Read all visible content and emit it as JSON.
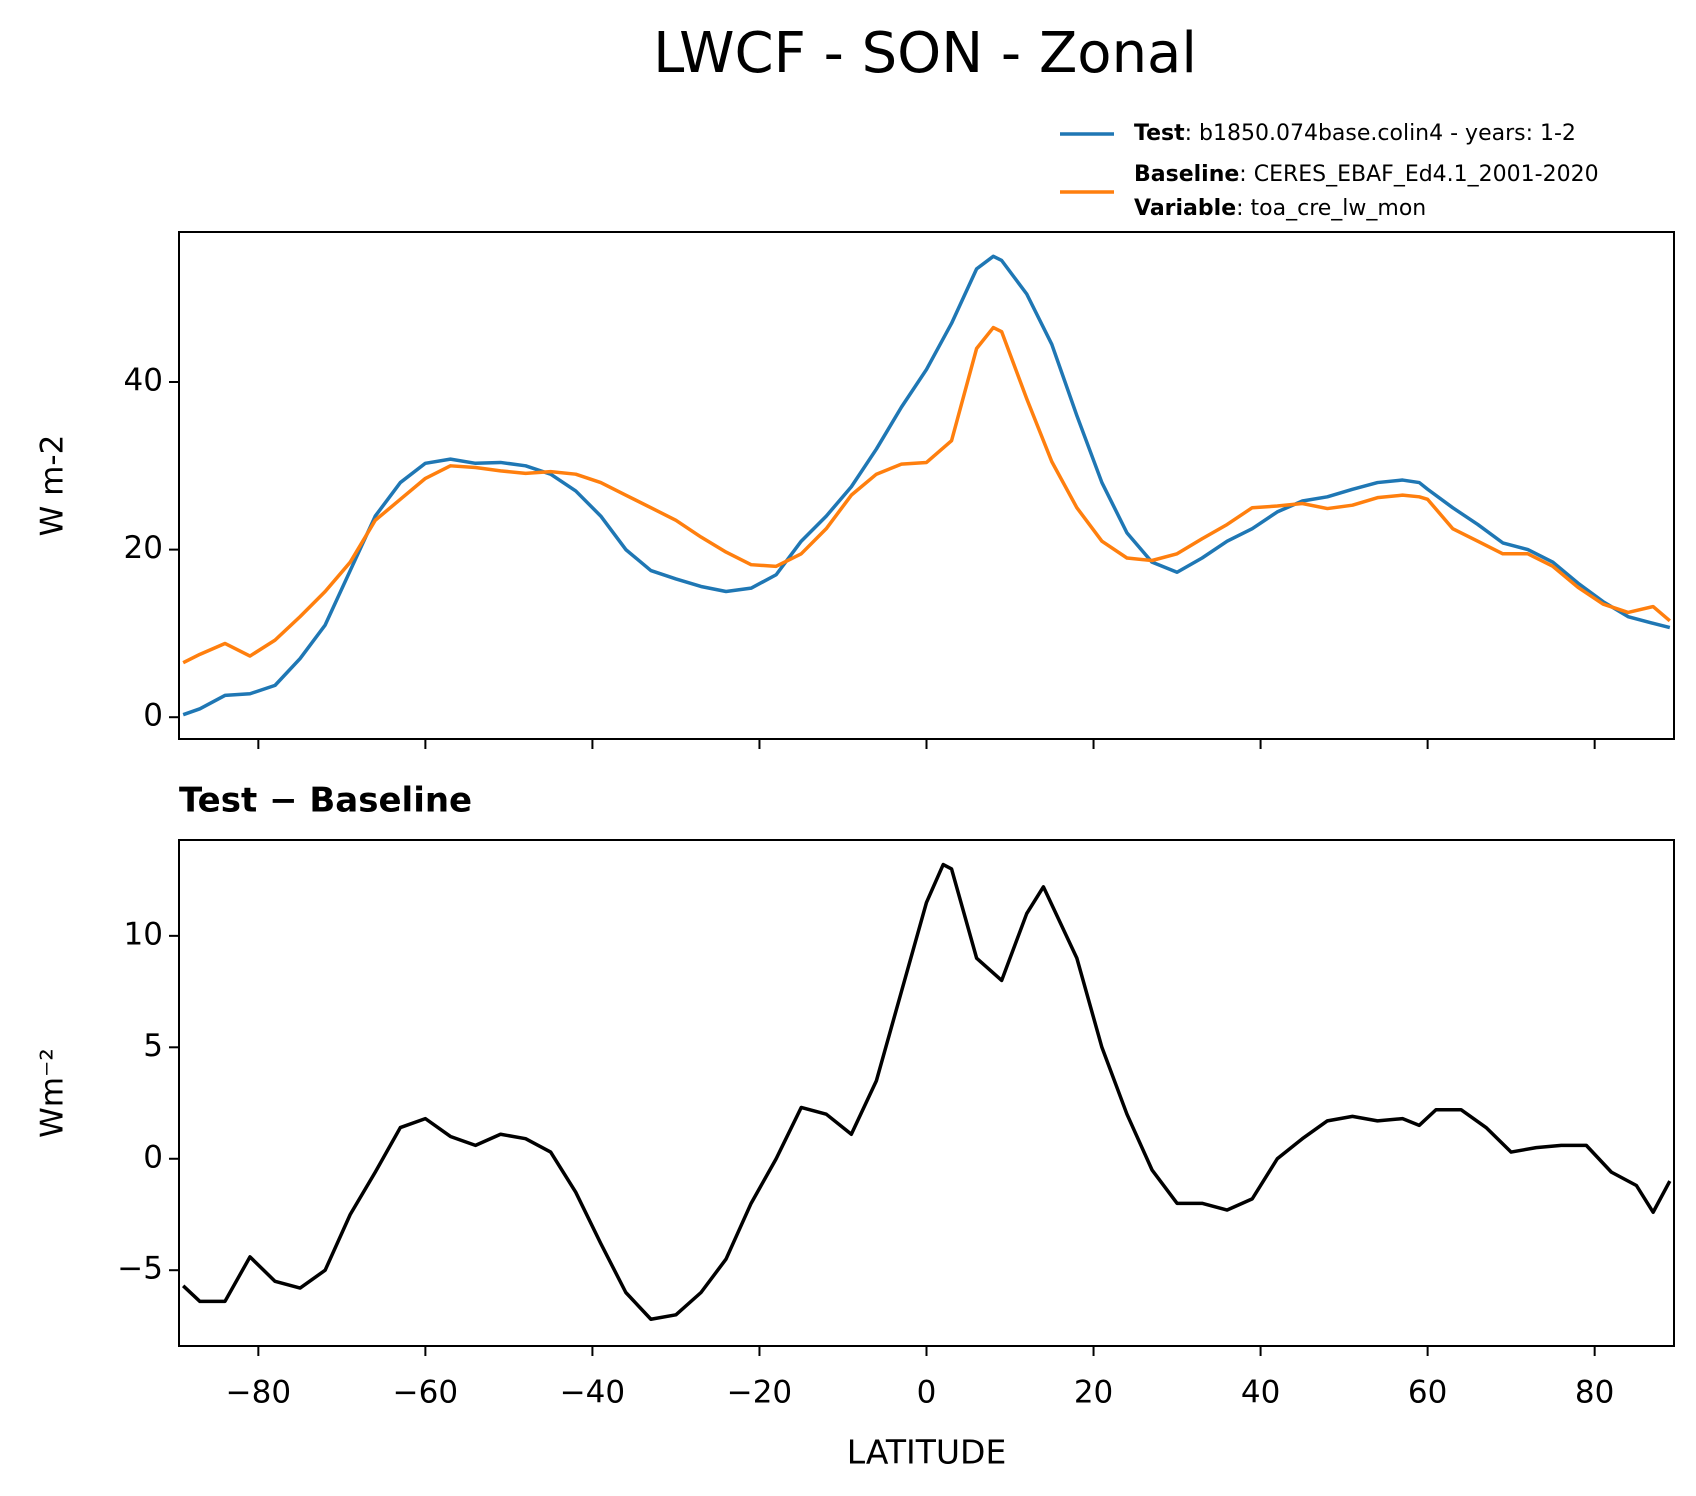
{
  "chart_data": [
    {
      "type": "line",
      "title": "LWCF - SON - Zonal",
      "ylabel": "W m-2",
      "x": [
        -89,
        -87,
        -84,
        -81,
        -78,
        -75,
        -72,
        -69,
        -66,
        -63,
        -60,
        -57,
        -54,
        -51,
        -48,
        -45,
        -42,
        -39,
        -36,
        -33,
        -30,
        -27,
        -24,
        -21,
        -18,
        -15,
        -12,
        -9,
        -6,
        -3,
        0,
        3,
        6,
        8,
        9,
        12,
        15,
        18,
        21,
        24,
        27,
        30,
        33,
        36,
        39,
        42,
        45,
        48,
        51,
        54,
        57,
        59,
        60,
        63,
        66,
        69,
        72,
        75,
        78,
        81,
        84,
        87,
        89
      ],
      "series": [
        {
          "name": "Test",
          "description": ": b1850.074base.colin4 - years: 1-2",
          "color": "#1f77b4",
          "values": [
            0.3,
            1.0,
            2.6,
            2.8,
            3.8,
            7.0,
            11.0,
            17.5,
            24,
            28,
            30.3,
            30.8,
            30.3,
            30.4,
            30.0,
            29.0,
            27.0,
            24.0,
            20.0,
            17.5,
            16.5,
            15.6,
            15.0,
            15.4,
            17.0,
            21.0,
            24.0,
            27.5,
            32.0,
            37.0,
            41.5,
            47.0,
            53.5,
            55.0,
            54.5,
            50.5,
            44.5,
            36.0,
            28.0,
            22.0,
            18.5,
            17.3,
            19.0,
            21.0,
            22.5,
            24.5,
            25.8,
            26.3,
            27.2,
            28.0,
            28.3,
            28.0,
            27.2,
            25.0,
            23.0,
            20.8,
            20.0,
            18.5,
            16.0,
            13.8,
            12.0,
            11.2,
            10.7
          ]
        },
        {
          "name": "Baseline",
          "description": ": CERES_EBAF_Ed4.1_2001-2020",
          "color": "#ff7f0e",
          "values": [
            6.5,
            7.5,
            8.8,
            7.3,
            9.2,
            12.0,
            15.0,
            18.5,
            23.5,
            26.0,
            28.5,
            30.0,
            29.8,
            29.4,
            29.1,
            29.3,
            29.0,
            28.0,
            26.5,
            25.0,
            23.5,
            21.5,
            19.7,
            18.2,
            18.0,
            19.5,
            22.5,
            26.5,
            29.0,
            30.2,
            30.4,
            33.0,
            44.0,
            46.5,
            46.0,
            38.0,
            30.5,
            25.0,
            21.0,
            19.0,
            18.7,
            19.5,
            21.3,
            23.0,
            25.0,
            25.2,
            25.5,
            24.9,
            25.3,
            26.2,
            26.5,
            26.3,
            26.0,
            22.5,
            21.0,
            19.5,
            19.5,
            18.0,
            15.5,
            13.5,
            12.5,
            13.2,
            11.5
          ]
        }
      ],
      "legend_note": {
        "name": "Variable",
        "description": ": toa_cre_lw_mon"
      },
      "xlim": [
        -89.5,
        89.5
      ],
      "xticks": [
        -80,
        -60,
        -40,
        -20,
        0,
        20,
        40,
        60,
        80
      ],
      "ylim": [
        -2.6,
        57.9
      ],
      "yticks": [
        0,
        20,
        40
      ]
    },
    {
      "type": "line",
      "title": "Test − Baseline",
      "ylabel": "Wm⁻²",
      "xlabel": "LATITUDE",
      "x": [
        -89,
        -87,
        -84,
        -81,
        -78,
        -75,
        -72,
        -69,
        -66,
        -63,
        -60,
        -57,
        -54,
        -51,
        -48,
        -45,
        -42,
        -39,
        -36,
        -33,
        -30,
        -27,
        -24,
        -21,
        -18,
        -15,
        -12,
        -9,
        -6,
        -3,
        0,
        2,
        3,
        6,
        9,
        12,
        14,
        18,
        21,
        24,
        27,
        30,
        33,
        36,
        39,
        42,
        45,
        48,
        51,
        54,
        57,
        59,
        61,
        64,
        67,
        70,
        73,
        76,
        79,
        82,
        85,
        87,
        89
      ],
      "series": [
        {
          "color": "#000000",
          "values": [
            -5.7,
            -6.4,
            -6.4,
            -4.4,
            -5.5,
            -5.8,
            -5.0,
            -2.5,
            -0.6,
            1.4,
            1.8,
            1.0,
            0.6,
            1.1,
            0.9,
            0.3,
            -1.5,
            -3.8,
            -6.0,
            -7.2,
            -7.0,
            -6.0,
            -4.5,
            -2.0,
            0.0,
            2.3,
            2.0,
            1.1,
            3.5,
            7.5,
            11.5,
            13.2,
            13.0,
            9.0,
            8.0,
            11.0,
            12.2,
            9.0,
            5.0,
            2.0,
            -0.5,
            -2.0,
            -2.0,
            -2.3,
            -1.8,
            0.0,
            0.9,
            1.7,
            1.9,
            1.7,
            1.8,
            1.5,
            2.2,
            2.2,
            1.4,
            0.3,
            0.5,
            0.6,
            0.6,
            -0.6,
            -1.2,
            -2.4,
            -1.0
          ]
        }
      ],
      "xlim": [
        -89.5,
        89.5
      ],
      "xticks": [
        {
          "value": -80,
          "label": "−80"
        },
        {
          "value": -60,
          "label": "−60"
        },
        {
          "value": -40,
          "label": "−40"
        },
        {
          "value": -20,
          "label": "−20"
        },
        0,
        20,
        40,
        60,
        80
      ],
      "ylim": [
        -8.4,
        14.3
      ],
      "yticks": [
        {
          "value": -5,
          "label": "−5"
        },
        0,
        5,
        10
      ]
    }
  ]
}
